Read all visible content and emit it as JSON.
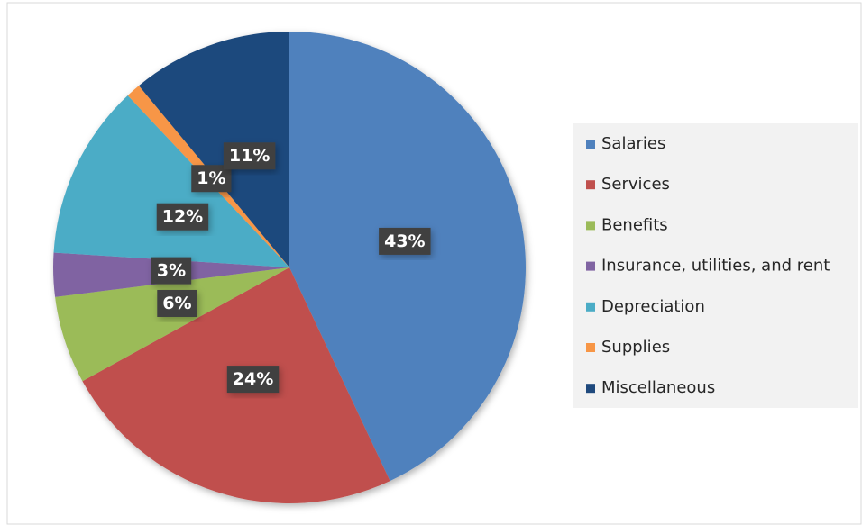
{
  "chart_data": {
    "type": "pie",
    "categories": [
      "Salaries",
      "Services",
      "Benefits",
      "Insurance, utilities, and rent",
      "Depreciation",
      "Supplies",
      "Miscellaneous"
    ],
    "values": [
      43,
      24,
      6,
      3,
      12,
      1,
      11
    ],
    "value_labels": [
      "43%",
      "24%",
      "6%",
      "3%",
      "12%",
      "1%",
      "11%"
    ],
    "colors": [
      "#4f81bd",
      "#c0504d",
      "#9bbb59",
      "#8064a2",
      "#4bacc6",
      "#f79646",
      "#1f497d"
    ],
    "legend": "right"
  }
}
